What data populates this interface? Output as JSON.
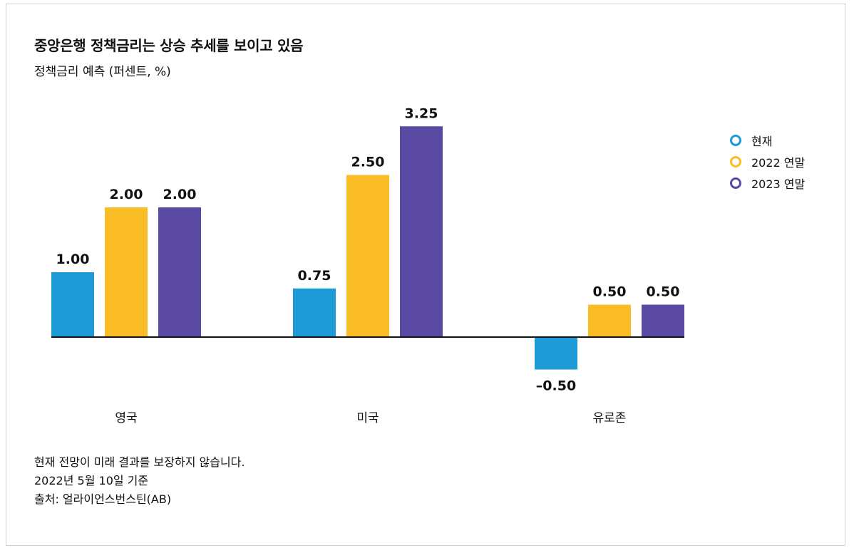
{
  "title": "중앙은행 정책금리는 상승 추세를 보이고 있음",
  "subtitle": "정책금리 예측 (퍼센트, %)",
  "notes": [
    "현재 전망이 미래 결과를 보장하지 않습니다.",
    "2022년 5월 10일 기준",
    "출처: 얼라이언스번스틴(AB)"
  ],
  "chart_data": {
    "type": "bar",
    "categories": [
      "영국",
      "미국",
      "유로존"
    ],
    "series": [
      {
        "name": "현재",
        "color": "#1e9ad6",
        "values": [
          1.0,
          0.75,
          -0.5
        ],
        "labels": [
          "1.00",
          "0.75",
          "–0.50"
        ]
      },
      {
        "name": "2022 연말",
        "color": "#fbbd26",
        "values": [
          2.0,
          2.5,
          0.5
        ],
        "labels": [
          "2.00",
          "2.50",
          "0.50"
        ]
      },
      {
        "name": "2023 연말",
        "color": "#5b4aa3",
        "values": [
          2.0,
          3.25,
          0.5
        ],
        "labels": [
          "2.00",
          "3.25",
          "0.50"
        ]
      }
    ],
    "ylim": [
      -0.5,
      3.25
    ],
    "grid": false,
    "legend_position": "right"
  }
}
